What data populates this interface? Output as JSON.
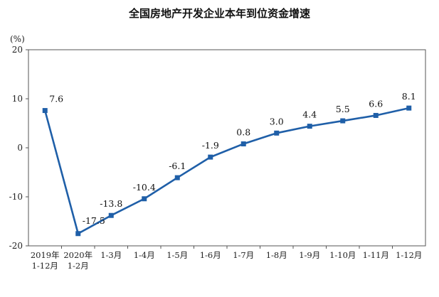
{
  "chart_data": {
    "type": "line",
    "title": "全国房地产开发企业本年到位资金增速",
    "y_unit": "(%)",
    "ylim": [
      -20,
      20
    ],
    "yticks": [
      20,
      10,
      0,
      -10,
      -20
    ],
    "categories": [
      [
        "2019年",
        "1-12月"
      ],
      [
        "2020年",
        "1-2月"
      ],
      [
        "1-3月"
      ],
      [
        "1-4月"
      ],
      [
        "1-5月"
      ],
      [
        "1-6月"
      ],
      [
        "1-7月"
      ],
      [
        "1-8月"
      ],
      [
        "1-9月"
      ],
      [
        "1-10月"
      ],
      [
        "1-11月"
      ],
      [
        "1-12月"
      ]
    ],
    "values": [
      7.6,
      -17.5,
      -13.8,
      -10.4,
      -6.1,
      -1.9,
      0.8,
      3.0,
      4.4,
      5.5,
      6.6,
      8.1
    ],
    "data_labels": [
      "7.6",
      "-17.5",
      "-13.8",
      "-10.4",
      "-6.1",
      "-1.9",
      "0.8",
      "3.0",
      "4.4",
      "5.5",
      "6.6",
      "8.1"
    ],
    "line_color": "#1f5fa8",
    "marker": "square",
    "grid": false,
    "legend": "none"
  }
}
